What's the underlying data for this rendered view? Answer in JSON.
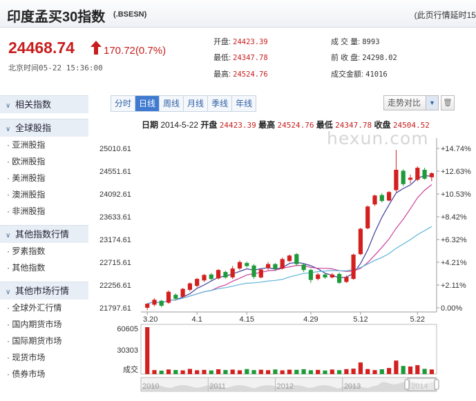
{
  "header": {
    "title": "印度孟买30指数",
    "code": "(.BSESN)",
    "note": "(此页行情延时15"
  },
  "quote": {
    "price": "24468.74",
    "change": "170.72(0.7%)",
    "time": "北京时间05-22 15:36:00",
    "open_label": "开盘:",
    "open": "24423.39",
    "low_label": "最低:",
    "low": "24347.78",
    "high_label": "最高:",
    "high": "24524.76",
    "volume_label": "成 交 量:",
    "volume": "8993",
    "prev_close_label": "前 收 盘:",
    "prev_close": "24298.02",
    "amount_label": "成交金额:",
    "amount": "41016"
  },
  "sidebar": {
    "sections": [
      {
        "title": "相关指数",
        "items": []
      },
      {
        "title": "全球股指",
        "items": [
          "亚洲股指",
          "欧洲股指",
          "美洲股指",
          "澳洲股指",
          "非洲股指"
        ]
      },
      {
        "title": "其他指数行情",
        "items": [
          "罗素指数",
          "其他指数"
        ]
      },
      {
        "title": "其他市场行情",
        "items": [
          "全球外汇行情",
          "国内期货市场",
          "国际期货市场",
          "现货市场",
          "债券市场"
        ]
      }
    ]
  },
  "toolbar": {
    "tabs": [
      "分时",
      "日线",
      "周线",
      "月线",
      "季线",
      "年线"
    ],
    "active_tab": 1,
    "compare_label": "走势对比"
  },
  "infobar": {
    "date_label": "日期",
    "date": "2014-5-22",
    "open_label": "开盘",
    "open": "24423.39",
    "high_label": "最高",
    "high": "24524.76",
    "low_label": "最低",
    "low": "24347.78",
    "close_label": "收盘",
    "close": "24504.52"
  },
  "watermark": "hexun.com",
  "colors": {
    "up": "#d41f1f",
    "down": "#1e9a3a",
    "ma5": "#3b3b9b",
    "ma10": "#cc3f9a",
    "ma20": "#5ab3d6"
  },
  "chart_data": {
    "type": "candlestick",
    "y_ticks": [
      "25010.61",
      "24551.61",
      "24092.61",
      "23633.61",
      "23174.61",
      "22715.61",
      "22256.61",
      "21797.61"
    ],
    "pct_ticks": [
      "+14.74%",
      "+12.63%",
      "+10.53%",
      "+8.42%",
      "+6.32%",
      "+4.21%",
      "+2.11%",
      "0.00%"
    ],
    "ylim": [
      21797.61,
      25010.61
    ],
    "x_ticks": [
      {
        "label": "3.20",
        "index": 0
      },
      {
        "label": "4.1",
        "index": 7
      },
      {
        "label": "4.15",
        "index": 14
      },
      {
        "label": "4.29",
        "index": 23
      },
      {
        "label": "5.12",
        "index": 30
      },
      {
        "label": "5.22",
        "index": 38
      }
    ],
    "candles": [
      [
        21800,
        21880,
        21750,
        21890
      ],
      [
        21860,
        21960,
        21830,
        21990
      ],
      [
        21940,
        21840,
        21810,
        21960
      ],
      [
        21900,
        22120,
        21880,
        22150
      ],
      [
        22060,
        21980,
        21950,
        22090
      ],
      [
        22020,
        22180,
        22000,
        22200
      ],
      [
        22160,
        22290,
        22130,
        22310
      ],
      [
        22240,
        22380,
        22210,
        22400
      ],
      [
        22350,
        22460,
        22320,
        22480
      ],
      [
        22470,
        22380,
        22350,
        22500
      ],
      [
        22390,
        22560,
        22370,
        22580
      ],
      [
        22520,
        22410,
        22380,
        22550
      ],
      [
        22410,
        22590,
        22380,
        22640
      ],
      [
        22590,
        22720,
        22560,
        22750
      ],
      [
        22700,
        22640,
        22610,
        22730
      ],
      [
        22650,
        22420,
        22380,
        22680
      ],
      [
        22410,
        22570,
        22390,
        22590
      ],
      [
        22600,
        22680,
        22560,
        22720
      ],
      [
        22680,
        22580,
        22540,
        22700
      ],
      [
        22590,
        22780,
        22570,
        22810
      ],
      [
        22740,
        22850,
        22720,
        22870
      ],
      [
        22880,
        22680,
        22640,
        22900
      ],
      [
        22670,
        22560,
        22520,
        22690
      ],
      [
        22560,
        22360,
        22300,
        22590
      ],
      [
        22380,
        22470,
        22350,
        22500
      ],
      [
        22470,
        22410,
        22380,
        22500
      ],
      [
        22410,
        22470,
        22390,
        22500
      ],
      [
        22480,
        22300,
        22280,
        22510
      ],
      [
        22320,
        22420,
        22300,
        22450
      ],
      [
        22380,
        22870,
        22360,
        22890
      ],
      [
        22880,
        23390,
        22860,
        23410
      ],
      [
        23400,
        23840,
        23380,
        23860
      ],
      [
        23880,
        24060,
        23850,
        24080
      ],
      [
        24070,
        23950,
        23920,
        24110
      ],
      [
        23960,
        24130,
        23940,
        24150
      ],
      [
        24170,
        24580,
        24130,
        24980
      ],
      [
        24560,
        24290,
        24250,
        24590
      ],
      [
        24380,
        24420,
        24300,
        24480
      ],
      [
        24380,
        24620,
        24350,
        24650
      ],
      [
        24580,
        24400,
        24380,
        24620
      ],
      [
        24430,
        24510,
        24350,
        24530
      ]
    ],
    "volume": {
      "label": "成交",
      "y_ticks": [
        "60605",
        "30303"
      ],
      "ylim": [
        0,
        60605
      ],
      "values": [
        60605,
        5200,
        4500,
        6000,
        5300,
        4800,
        6700,
        5000,
        5400,
        4700,
        6200,
        5300,
        5800,
        4900,
        6500,
        5200,
        5600,
        5100,
        6000,
        4800,
        5700,
        5500,
        6300,
        5000,
        5400,
        4600,
        5900,
        5100,
        6400,
        7000,
        15000,
        6500,
        5200,
        6200,
        7800,
        17500,
        10500,
        9800,
        11500,
        6800,
        6000
      ]
    },
    "overview_years": [
      "2010",
      "2011",
      "2012",
      "2013",
      "2014"
    ]
  }
}
